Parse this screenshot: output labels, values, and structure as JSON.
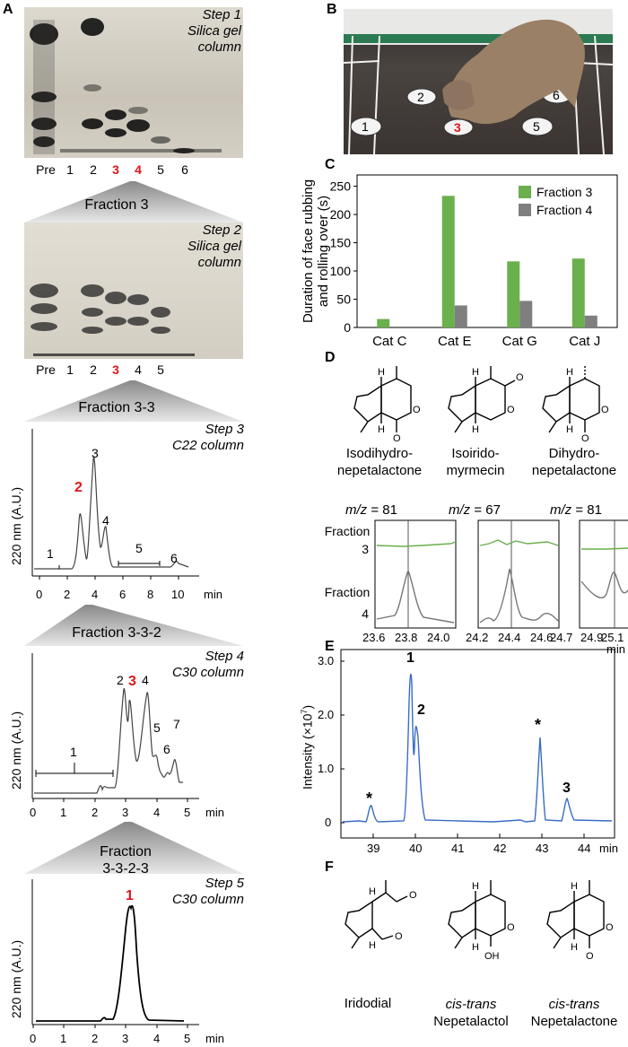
{
  "panelA": {
    "letter": "A",
    "step1": {
      "line1": "Step 1",
      "line2": "Silica gel",
      "line3": "column"
    },
    "step2": {
      "line1": "Step 2",
      "line2": "Silica gel",
      "line3": "column"
    },
    "step3": {
      "line1": "Step 3",
      "line2": "C22 column"
    },
    "step4": {
      "line1": "Step 4",
      "line2": "C30 column"
    },
    "step5": {
      "line1": "Step 5",
      "line2": "C30 column"
    },
    "lanes1": [
      "Pre",
      "1",
      "2",
      "3",
      "4",
      "5",
      "6"
    ],
    "lanes2": [
      "Pre",
      "1",
      "2",
      "3",
      "4",
      "5"
    ],
    "fraction3": "Fraction 3",
    "fraction33": "Fraction 3-3",
    "fraction332": "Fraction 3-3-2",
    "fraction3323_l1": "Fraction",
    "fraction3323_l2": "3-3-2-3",
    "yaxis": "220 nm  (A.U.)",
    "unit": "min",
    "chrom3": {
      "ticks": [
        "0",
        "2",
        "4",
        "6",
        "8",
        "10"
      ],
      "peaks": [
        "1",
        "2",
        "3",
        "4",
        "5",
        "6"
      ]
    },
    "chrom4": {
      "ticks": [
        "0",
        "1",
        "2",
        "3",
        "4",
        "5"
      ],
      "peaks": [
        "1",
        "2",
        "3",
        "4",
        "5",
        "6",
        "7"
      ]
    },
    "chrom5": {
      "ticks": [
        "0",
        "1",
        "2",
        "3",
        "4",
        "5"
      ],
      "peaks": [
        "1"
      ]
    }
  },
  "panelB": {
    "letter": "B",
    "plates": [
      "1",
      "2",
      "3",
      "5",
      "6"
    ]
  },
  "panelC": {
    "letter": "C",
    "chart_data": {
      "type": "bar",
      "categories": [
        "Cat C",
        "Cat E",
        "Cat G",
        "Cat J"
      ],
      "series": [
        {
          "name": "Fraction 3",
          "values": [
            15,
            233,
            117,
            122
          ],
          "color": "#6ab04c"
        },
        {
          "name": "Fraction 4",
          "values": [
            0,
            39,
            47,
            21
          ],
          "color": "#7f7f7f"
        }
      ],
      "ylabel_l1": "Duration of face rubbing",
      "ylabel_l2": "and rolling over (s)",
      "ylim": [
        0,
        270
      ],
      "yticks": [
        "0",
        "50",
        "100",
        "150",
        "200",
        "250"
      ]
    }
  },
  "panelD": {
    "letter": "D",
    "compounds": [
      {
        "l1": "Isodihydro-",
        "l2": "nepetalactone"
      },
      {
        "l1": "Isoirido-",
        "l2": "myrmecin"
      },
      {
        "l1": "Dihydro-",
        "l2": "nepetalactone"
      }
    ],
    "mz": [
      {
        "label": "m/z",
        "eq": " = 81"
      },
      {
        "label": "m/z",
        "eq": " = 67"
      },
      {
        "label": "m/z",
        "eq": " = 81"
      }
    ],
    "fraction3_l1": "Fraction",
    "fraction3_l2": "3",
    "fraction4_l1": "Fraction",
    "fraction4_l2": "4",
    "ticks1": [
      "23.6",
      "23.8",
      "24.0"
    ],
    "ticks2": [
      "24.2",
      "24.4",
      "24.6"
    ],
    "ticks3": [
      "24.7",
      "24.9",
      "25.1"
    ],
    "unit": "min"
  },
  "panelE": {
    "letter": "E",
    "ylabel": "Intensity (×10",
    "ylabel_exp": "7",
    "ylabel_close": ")",
    "yticks": [
      "0",
      "1.0",
      "2.0",
      "3.0"
    ],
    "xticks": [
      "39",
      "40",
      "41",
      "42",
      "43",
      "44"
    ],
    "unit": "min",
    "peaks": [
      "1",
      "2",
      "3",
      "*",
      "*"
    ]
  },
  "panelF": {
    "letter": "F",
    "c1": "Iridodial",
    "c2_l1": "cis-trans",
    "c2_l2": "Nepetalactol",
    "c3_l1": "cis-trans",
    "c3_l2": "Nepetalactone"
  }
}
